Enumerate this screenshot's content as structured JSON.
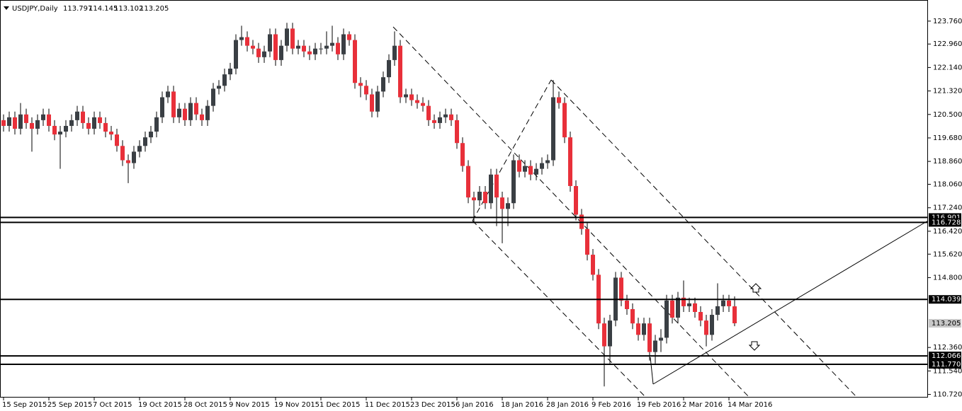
{
  "chart_data": {
    "type": "candlestick",
    "title": "USDJPY,Daily",
    "up_color": "#3a3f44",
    "down_color": "#e8303a",
    "categories": [
      "15 Sep 2015",
      null,
      null,
      null,
      null,
      null,
      null,
      null,
      "25 Sep 2015",
      null,
      null,
      null,
      null,
      null,
      null,
      null,
      "7 Oct 2015",
      null,
      null,
      null,
      null,
      null,
      null,
      null,
      "19 Oct 2015",
      null,
      null,
      null,
      null,
      null,
      null,
      null,
      "28 Oct 2015",
      null,
      null,
      null,
      null,
      null,
      null,
      null,
      "9 Nov 2015",
      null,
      null,
      null,
      null,
      null,
      null,
      null,
      "19 Nov 2015",
      null,
      null,
      null,
      null,
      null,
      null,
      null,
      "1 Dec 2015",
      null,
      null,
      null,
      null,
      null,
      null,
      null,
      "11 Dec 2015",
      null,
      null,
      null,
      null,
      null,
      null,
      null,
      "23 Dec 2015",
      null,
      null,
      null,
      null,
      null,
      null,
      null,
      "6 Jan 2016",
      null,
      null,
      null,
      null,
      null,
      null,
      null,
      "18 Jan 2016",
      null,
      null,
      null,
      null,
      null,
      null,
      null,
      "28 Jan 2016",
      null,
      null,
      null,
      null,
      null,
      null,
      null,
      "9 Feb 2016",
      null,
      null,
      null,
      null,
      null,
      null,
      null,
      "19 Feb 2016",
      null,
      null,
      null,
      null,
      null,
      null,
      null,
      "2 Mar 2016",
      null,
      null,
      null,
      null,
      null,
      null,
      null,
      "14 Mar 2016",
      null
    ],
    "open": [
      120.3,
      120.1,
      120.4,
      120.0,
      120.5,
      120.2,
      120.0,
      120.3,
      120.5,
      120.1,
      119.8,
      119.9,
      120.1,
      120.3,
      120.6,
      120.2,
      120.0,
      120.4,
      120.2,
      119.9,
      119.8,
      119.4,
      118.9,
      118.8,
      119.2,
      119.4,
      119.7,
      119.9,
      120.4,
      121.1,
      121.3,
      120.4,
      120.7,
      120.3,
      120.9,
      120.5,
      120.3,
      120.8,
      121.4,
      121.5,
      121.9,
      122.1,
      123.1,
      123.2,
      122.9,
      122.8,
      122.5,
      122.7,
      123.3,
      122.4,
      122.9,
      123.5,
      122.8,
      122.9,
      122.7,
      122.6,
      122.8,
      122.8,
      122.9,
      123.0,
      122.6,
      123.3,
      123.1,
      121.6,
      121.5,
      121.2,
      120.6,
      121.3,
      121.8,
      122.4,
      122.9,
      121.1,
      121.2,
      121.0,
      120.9,
      120.8,
      120.3,
      120.2,
      120.4,
      120.5,
      120.3,
      119.5,
      118.7,
      117.6,
      117.5,
      117.8,
      117.4,
      118.4,
      117.6,
      117.2,
      117.4,
      118.9,
      118.5,
      118.7,
      118.4,
      118.6,
      118.8,
      118.9,
      121.1,
      120.9,
      119.7,
      118.0,
      117.0,
      116.5,
      115.6,
      114.9,
      113.2,
      112.4,
      113.3,
      114.8,
      114.0,
      113.7,
      113.2,
      112.8,
      113.2,
      112.2,
      112.6,
      112.7,
      114.0,
      113.4,
      114.1,
      113.8,
      113.9,
      113.6,
      113.3,
      112.8,
      113.5,
      113.8,
      114.0,
      113.797
    ],
    "high": [
      120.5,
      120.6,
      120.6,
      120.9,
      120.7,
      120.4,
      120.5,
      120.7,
      120.7,
      120.3,
      120.1,
      120.3,
      120.5,
      120.8,
      120.8,
      120.4,
      120.6,
      120.6,
      120.4,
      120.1,
      120.0,
      119.6,
      119.1,
      119.4,
      119.6,
      119.9,
      120.1,
      120.6,
      121.3,
      121.5,
      121.5,
      120.9,
      120.9,
      121.1,
      121.1,
      120.7,
      121.0,
      121.6,
      121.7,
      122.1,
      122.3,
      123.3,
      123.6,
      123.4,
      123.1,
      123.0,
      122.9,
      123.5,
      123.5,
      123.1,
      123.7,
      123.7,
      123.1,
      123.1,
      122.9,
      123.0,
      123.0,
      123.4,
      123.6,
      123.2,
      123.5,
      123.4,
      123.3,
      121.8,
      121.7,
      121.4,
      121.5,
      122.0,
      122.6,
      123.4,
      123.1,
      121.4,
      121.4,
      121.2,
      121.1,
      121.0,
      120.5,
      120.6,
      120.7,
      120.7,
      120.5,
      119.7,
      118.9,
      117.8,
      118.0,
      118.0,
      118.6,
      118.6,
      117.8,
      117.6,
      119.1,
      119.1,
      118.9,
      118.9,
      118.8,
      119.0,
      119.1,
      121.7,
      121.3,
      121.1,
      119.9,
      118.2,
      117.2,
      116.7,
      115.8,
      115.1,
      113.4,
      113.5,
      115.0,
      115.0,
      114.2,
      113.9,
      113.4,
      113.4,
      113.4,
      112.8,
      113.0,
      114.2,
      114.2,
      114.3,
      114.7,
      114.1,
      114.1,
      113.8,
      113.5,
      113.7,
      114.6,
      114.2,
      114.2,
      114.145
    ],
    "low": [
      119.9,
      119.9,
      119.8,
      119.8,
      120.0,
      119.2,
      119.8,
      120.1,
      119.9,
      119.6,
      118.6,
      119.7,
      119.9,
      120.1,
      120.0,
      119.8,
      119.8,
      120.0,
      119.7,
      119.6,
      119.2,
      118.7,
      118.1,
      118.6,
      119.0,
      119.2,
      119.5,
      119.7,
      120.2,
      120.9,
      120.2,
      120.2,
      120.1,
      120.1,
      120.3,
      120.1,
      120.1,
      120.6,
      121.2,
      121.3,
      121.7,
      121.9,
      122.9,
      122.7,
      122.6,
      122.3,
      122.3,
      122.5,
      122.2,
      122.2,
      122.7,
      122.6,
      122.6,
      122.5,
      122.4,
      122.4,
      122.6,
      122.6,
      122.7,
      122.4,
      122.4,
      122.9,
      121.4,
      121.1,
      121.0,
      120.4,
      120.4,
      121.1,
      121.6,
      122.2,
      120.9,
      120.9,
      120.8,
      120.7,
      120.6,
      120.1,
      120.0,
      120.0,
      120.2,
      120.1,
      119.3,
      118.5,
      117.4,
      116.7,
      117.3,
      117.2,
      117.2,
      116.6,
      116.0,
      116.6,
      117.2,
      118.3,
      118.3,
      118.2,
      118.2,
      118.4,
      118.6,
      118.7,
      120.7,
      119.5,
      117.8,
      116.8,
      116.3,
      115.4,
      114.7,
      113.0,
      111.0,
      111.8,
      113.1,
      113.8,
      113.5,
      113.0,
      112.6,
      112.6,
      111.9,
      111.8,
      112.2,
      112.5,
      113.2,
      113.2,
      113.6,
      113.6,
      113.4,
      113.1,
      112.4,
      112.6,
      113.3,
      113.6,
      113.6,
      113.102
    ],
    "close": [
      120.1,
      120.4,
      120.0,
      120.5,
      120.2,
      120.0,
      120.3,
      120.5,
      120.1,
      119.8,
      119.9,
      120.1,
      120.3,
      120.6,
      120.2,
      120.0,
      120.4,
      120.2,
      119.9,
      119.8,
      119.4,
      118.9,
      118.8,
      119.2,
      119.4,
      119.7,
      119.9,
      120.4,
      121.1,
      121.3,
      120.4,
      120.7,
      120.3,
      120.9,
      120.5,
      120.3,
      120.8,
      121.4,
      121.5,
      121.9,
      122.1,
      123.1,
      123.2,
      122.9,
      122.8,
      122.5,
      122.7,
      123.3,
      122.4,
      122.9,
      123.5,
      122.8,
      122.9,
      122.7,
      122.6,
      122.8,
      122.8,
      122.9,
      123.0,
      122.6,
      123.3,
      123.1,
      121.6,
      121.5,
      121.2,
      120.6,
      121.3,
      121.8,
      122.4,
      122.9,
      121.1,
      121.2,
      121.0,
      120.9,
      120.8,
      120.3,
      120.2,
      120.4,
      120.5,
      120.3,
      119.5,
      118.7,
      117.6,
      117.5,
      117.8,
      117.4,
      118.4,
      117.6,
      117.2,
      117.4,
      118.9,
      118.5,
      118.7,
      118.4,
      118.6,
      118.8,
      118.9,
      121.1,
      120.9,
      119.7,
      118.0,
      117.0,
      116.5,
      115.6,
      114.9,
      113.2,
      112.4,
      113.3,
      114.8,
      114.0,
      113.7,
      113.2,
      112.8,
      113.2,
      112.2,
      112.6,
      112.7,
      114.0,
      113.4,
      114.1,
      113.8,
      113.9,
      113.6,
      113.3,
      112.8,
      113.5,
      113.8,
      114.0,
      113.8,
      113.205
    ],
    "ylim": [
      110.61,
      124.3
    ],
    "yticks": [
      {
        "value": 123.76,
        "label": "123.760"
      },
      {
        "value": 122.96,
        "label": "122.960"
      },
      {
        "value": 122.14,
        "label": "122.140"
      },
      {
        "value": 121.32,
        "label": "121.320"
      },
      {
        "value": 120.5,
        "label": "120.500"
      },
      {
        "value": 119.68,
        "label": "119.680"
      },
      {
        "value": 118.86,
        "label": "118.860"
      },
      {
        "value": 118.06,
        "label": "118.060"
      },
      {
        "value": 117.24,
        "label": "117.240"
      },
      {
        "value": 116.42,
        "label": "116.420"
      },
      {
        "value": 115.62,
        "label": "115.620"
      },
      {
        "value": 114.8,
        "label": "114.800"
      },
      {
        "value": 112.36,
        "label": "112.360"
      },
      {
        "value": 111.54,
        "label": "111.540"
      },
      {
        "value": 110.72,
        "label": "110.720"
      }
    ],
    "levels": [
      116.901,
      116.728,
      114.039,
      112.066,
      {
        "value": 111.77,
        "label": "111.770"
      }
    ]
  }
}
